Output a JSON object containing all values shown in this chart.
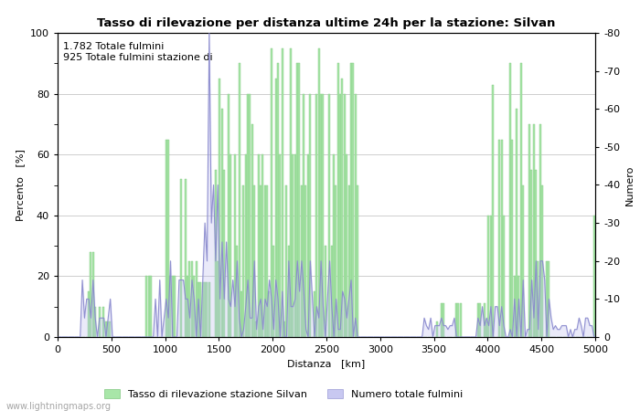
{
  "title": "Tasso di rilevazione per distanza ultime 24h per la stazione: Silvan",
  "xlabel": "Distanza   [km]",
  "ylabel_left": "Percento   [%]",
  "ylabel_right": "Numero",
  "annotation_line1": "1.782 Totale fulmini",
  "annotation_line2": "925 Totale fulmini stazione di",
  "watermark": "www.lightningmaps.org",
  "legend_green": "Tasso di rilevazione stazione Silvan",
  "legend_blue": "Numero totale fulmini",
  "xlim": [
    0,
    5000
  ],
  "ylim_left": [
    0,
    100
  ],
  "ylim_right": [
    0,
    80
  ],
  "xticks": [
    0,
    500,
    1000,
    1500,
    2000,
    2500,
    3000,
    3500,
    4000,
    4500,
    5000
  ],
  "yticks_left": [
    0,
    20,
    40,
    60,
    80,
    100
  ],
  "yticks_right": [
    0,
    10,
    20,
    30,
    40,
    50,
    60,
    70,
    80
  ],
  "bar_color": "#a8e6a8",
  "bar_edge_color": "#80c880",
  "line_color": "#8888cc",
  "line_fill_color": "#bbbbee",
  "background_color": "#ffffff",
  "grid_color": "#bbbbbb",
  "bin_width": 20,
  "title_fontsize": 9.5,
  "label_fontsize": 8,
  "tick_fontsize": 8,
  "annot_fontsize": 8
}
